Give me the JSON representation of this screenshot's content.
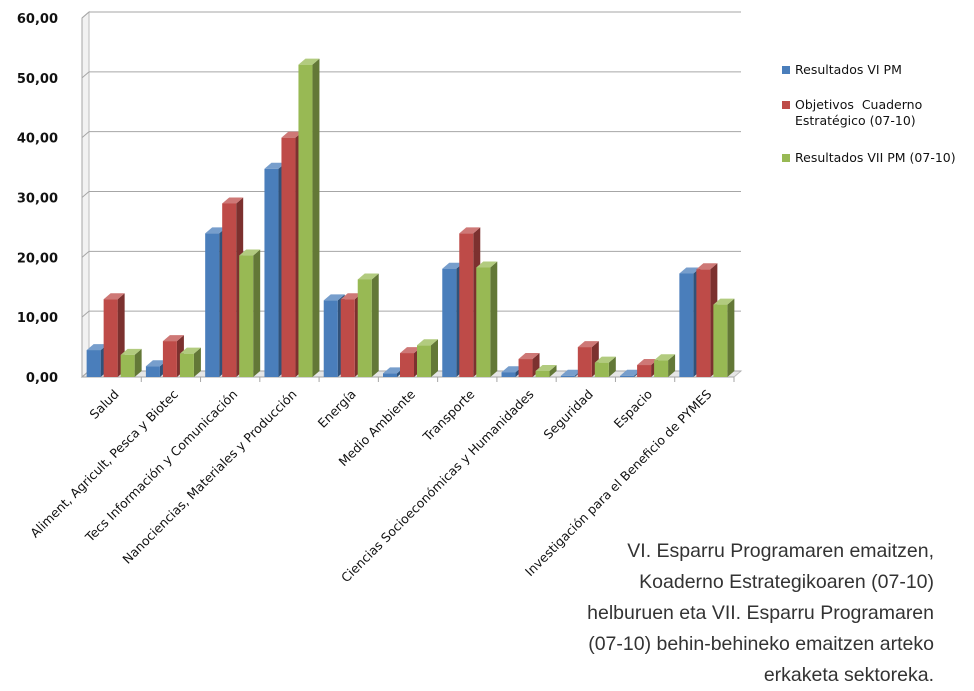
{
  "chart_data": {
    "type": "bar",
    "title": "",
    "xlabel": "",
    "ylabel": "",
    "ylim": [
      0,
      60
    ],
    "yticks": [
      "0,00",
      "10,00",
      "20,00",
      "30,00",
      "40,00",
      "50,00",
      "60,00"
    ],
    "grid": true,
    "legend_position": "right",
    "categories": [
      "Salud",
      "Aliment, Agricult, Pesca y Biotec",
      "Tecs Información y Comunicación",
      "Nanociencias, Materiales y Producción",
      "Energía",
      "Medio Ambiente",
      "Transporte",
      "Ciencias Socioeconómicas y Humanidades",
      "Seguridad",
      "Espacio",
      "Investigación para el Beneficio de PYMES"
    ],
    "series": [
      {
        "name": "Resultados VI PM",
        "color": "#4a7ebb",
        "values": [
          4.5,
          1.8,
          24.0,
          34.8,
          12.8,
          0.6,
          18.1,
          0.8,
          0.2,
          0.2,
          17.3
        ]
      },
      {
        "name": "Objetivos  Cuaderno Estratégico (07-10)",
        "color": "#be4b48",
        "values": [
          13.0,
          6.0,
          29.0,
          40.0,
          13.0,
          4.0,
          24.0,
          3.0,
          5.0,
          2.0,
          18.0
        ]
      },
      {
        "name": "Resultados VII PM (07-10)",
        "color": "#98b954",
        "values": [
          3.7,
          3.9,
          20.3,
          52.2,
          16.3,
          5.3,
          18.3,
          1.0,
          2.4,
          2.8,
          12.1
        ]
      }
    ]
  },
  "legend": {
    "items": [
      {
        "lines": [
          "Resultados VI PM"
        ],
        "color": "#4a7ebb"
      },
      {
        "lines": [
          "Objetivos  Cuaderno",
          "Estratégico (07-10)"
        ],
        "color": "#be4b48"
      },
      {
        "lines": [
          "Resultados VII PM (07-10)"
        ],
        "color": "#98b954"
      }
    ]
  },
  "caption": {
    "lines": [
      "VI. Esparru Programaren emaitzen,",
      "Koaderno Estrategikoaren (07-10)",
      "helburuen eta VII. Esparru Programaren",
      "(07-10) behin-behineko emaitzen arteko",
      "erkaketa sektoreka."
    ]
  }
}
